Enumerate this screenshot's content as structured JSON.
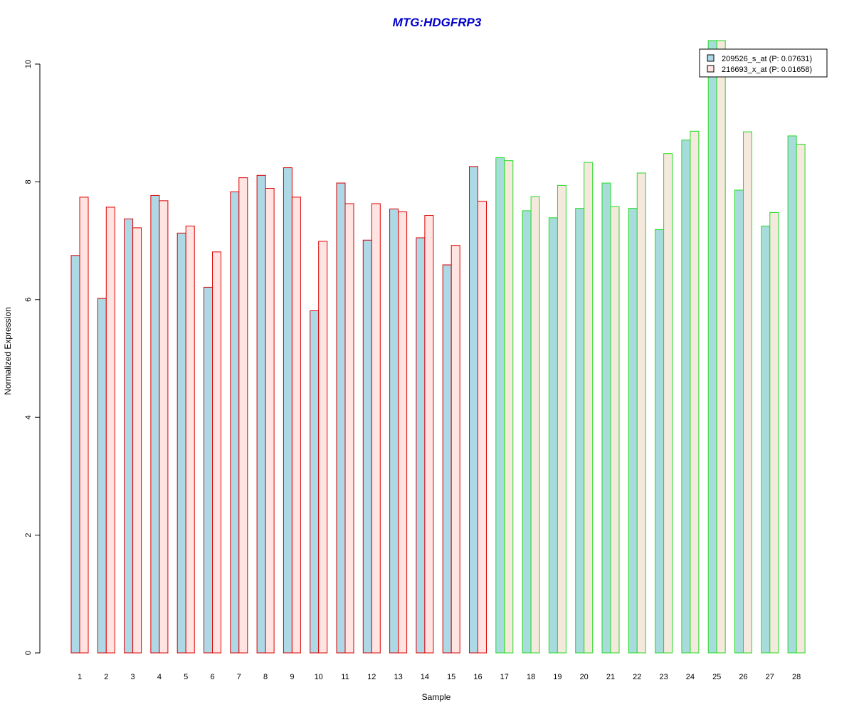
{
  "chart_data": {
    "type": "bar",
    "title": "MTG:HDGFRP3",
    "xlabel": "Sample",
    "ylabel": "Normalized Expression",
    "ylim": [
      0,
      10
    ],
    "yticks": [
      "0",
      "2",
      "4",
      "6",
      "8",
      "10"
    ],
    "categories": [
      "1",
      "2",
      "3",
      "4",
      "5",
      "6",
      "7",
      "8",
      "9",
      "10",
      "11",
      "12",
      "13",
      "14",
      "15",
      "16",
      "17",
      "18",
      "19",
      "20",
      "21",
      "22",
      "23",
      "24",
      "25",
      "26",
      "27",
      "28"
    ],
    "series": [
      {
        "name": "209526_s_at (P: 0.07631)",
        "values": [
          6.75,
          6.02,
          7.37,
          7.77,
          7.13,
          6.21,
          7.83,
          8.11,
          8.24,
          5.81,
          7.98,
          7.01,
          7.54,
          7.05,
          6.59,
          8.26,
          8.41,
          7.51,
          7.39,
          7.55,
          7.98,
          7.55,
          7.19,
          8.71,
          10.4,
          7.86,
          7.25,
          8.78
        ]
      },
      {
        "name": "216693_x_at (P: 0.01658)",
        "values": [
          7.74,
          7.57,
          7.22,
          7.68,
          7.25,
          6.81,
          8.07,
          7.89,
          7.74,
          6.99,
          7.63,
          7.63,
          7.49,
          7.43,
          6.92,
          7.67,
          8.36,
          7.75,
          7.94,
          8.33,
          7.58,
          8.15,
          8.48,
          8.86,
          10.4,
          8.85,
          7.48,
          8.64
        ]
      }
    ],
    "group_borders": [
      "#dd0000",
      "#dd0000",
      "#dd0000",
      "#dd0000",
      "#dd0000",
      "#dd0000",
      "#dd0000",
      "#dd0000",
      "#dd0000",
      "#dd0000",
      "#dd0000",
      "#dd0000",
      "#dd0000",
      "#dd0000",
      "#dd0000",
      "#dd0000",
      "#22dd22",
      "#22dd22",
      "#22dd22",
      "#22dd22",
      "#22dd22",
      "#22dd22",
      "#22dd22",
      "#22dd22",
      "#22dd22",
      "#22dd22",
      "#22dd22",
      "#22dd22"
    ],
    "colors": {
      "title": "#0000cc",
      "series1_fill_red": "#add8e6",
      "series2_fill_red": "#ffe4e1",
      "series1_fill_green": "#a8dcdc",
      "series2_fill_green": "#f5e8dc",
      "legend_border": "#000000"
    },
    "grid": false,
    "legend_position": "top-right"
  }
}
